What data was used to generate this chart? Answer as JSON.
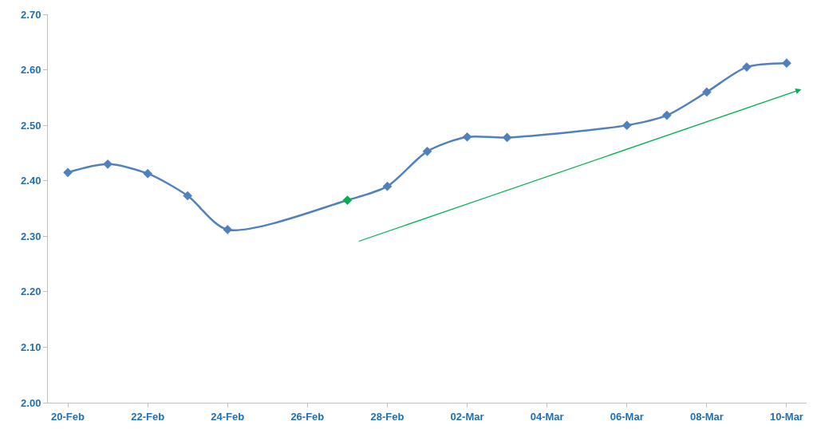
{
  "chart_data": {
    "type": "line",
    "x": [
      "--02-20",
      "--02-21",
      "--02-22",
      "--02-23",
      "--02-24",
      "--02-27",
      "--02-28",
      "--03-01",
      "--03-02",
      "--03-03",
      "--03-06",
      "--03-07",
      "--03-08",
      "--03-09",
      "--03-10"
    ],
    "series": [
      {
        "color": "#4f81bd",
        "colors": [
          "#4f81bd",
          "#4f81bd",
          "#4f81bd",
          "#4f81bd",
          "#4f81bd",
          "#00b050",
          "#4f81bd",
          "#4f81bd",
          "#4f81bd",
          "#4f81bd",
          "#4f81bd",
          "#4f81bd",
          "#4f81bd",
          "#4f81bd",
          "#4f81bd"
        ],
        "values": [
          2.415,
          2.43,
          2.413,
          2.373,
          2.312,
          2.365,
          2.39,
          2.453,
          2.479,
          2.478,
          2.5,
          2.518,
          2.56,
          2.605,
          2.612
        ]
      }
    ],
    "xlim": [
      "--02-19T12:00",
      "--03-10T12:00"
    ],
    "xticks": [
      {
        "value": "--02-20",
        "label": "20-Feb"
      },
      {
        "value": "--02-22",
        "label": "22-Feb"
      },
      {
        "value": "--02-24",
        "label": "24-Feb"
      },
      {
        "value": "--02-26",
        "label": "26-Feb"
      },
      {
        "value": "--02-28",
        "label": "28-Feb"
      },
      {
        "value": "--03-02",
        "label": "02-Mar"
      },
      {
        "value": "--03-04",
        "label": "04-Mar"
      },
      {
        "value": "--03-06",
        "label": "06-Mar"
      },
      {
        "value": "--03-08",
        "label": "08-Mar"
      },
      {
        "value": "--03-10",
        "label": "10-Mar"
      }
    ],
    "ylim": [
      2.0,
      2.7
    ],
    "yticks": [
      {
        "value": 2.0,
        "label": "2.00"
      },
      {
        "value": 2.1,
        "label": "2.10"
      },
      {
        "value": 2.2,
        "label": "2.20"
      },
      {
        "value": 2.3,
        "label": "2.30"
      },
      {
        "value": 2.4,
        "label": "2.40"
      },
      {
        "value": 2.5,
        "label": "2.50"
      },
      {
        "value": 2.6,
        "label": "2.60"
      },
      {
        "value": 2.7,
        "label": "2.70"
      }
    ],
    "marker": "diamond",
    "line_style": "solid"
  }
}
